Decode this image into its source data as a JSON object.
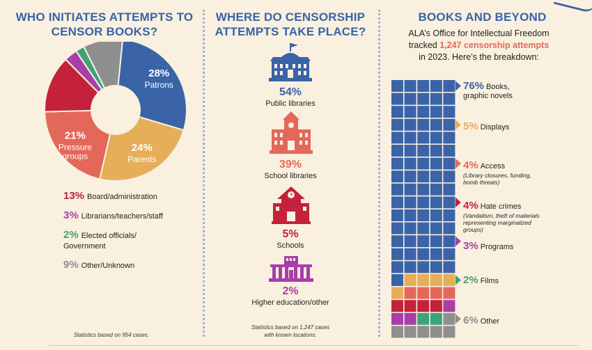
{
  "colors": {
    "blue": "#3a63a8",
    "orange": "#e6ae58",
    "salmon": "#e4685a",
    "red": "#c4213a",
    "purple": "#a83ea8",
    "green": "#3fa37a",
    "gray": "#8f8f8f",
    "background": "#f9f0df"
  },
  "initiators": {
    "heading": "WHO INITIATES ATTEMPTS TO CENSOR BOOKS?",
    "footnote": "Statistics based on 954 cases.",
    "legend": [
      {
        "pct": "13%",
        "label": "Board/administration",
        "color": "#c4213a"
      },
      {
        "pct": "3%",
        "label": "Librarians/teachers/staff",
        "color": "#a83ea8"
      },
      {
        "pct": "2%",
        "label": "Elected officials/",
        "label2": "Government",
        "color": "#3fa37a"
      },
      {
        "pct": "9%",
        "label": "Other/Unknown",
        "color": "#8f8f8f"
      }
    ]
  },
  "chart_data": [
    {
      "type": "pie",
      "title": "WHO INITIATES ATTEMPTS TO CENSOR BOOKS?",
      "donut": true,
      "slices": [
        {
          "label": "Patrons",
          "value": 28,
          "pct": "28%",
          "color": "#3a63a8",
          "label_lines": [
            "Patrons"
          ]
        },
        {
          "label": "Parents",
          "value": 24,
          "pct": "24%",
          "color": "#e6ae58",
          "label_lines": [
            "Parents"
          ]
        },
        {
          "label": "Pressure groups",
          "value": 21,
          "pct": "21%",
          "color": "#e4685a",
          "label_lines": [
            "Pressure",
            "groups"
          ]
        },
        {
          "label": "Board/administration",
          "value": 13,
          "pct": "13%",
          "color": "#c4213a"
        },
        {
          "label": "Librarians/teachers/staff",
          "value": 3,
          "pct": "3%",
          "color": "#a83ea8"
        },
        {
          "label": "Elected officials/Government",
          "value": 2,
          "pct": "2%",
          "color": "#3fa37a"
        },
        {
          "label": "Other/Unknown",
          "value": 9,
          "pct": "9%",
          "color": "#8f8f8f"
        }
      ]
    },
    {
      "type": "bar",
      "title": "WHERE DO CENSORSHIP ATTEMPTS TAKE PLACE?",
      "categories": [
        "Public libraries",
        "School libraries",
        "Schools",
        "Higher education/other"
      ],
      "values": [
        54,
        39,
        5,
        2
      ],
      "unit": "%"
    },
    {
      "type": "waffle",
      "title": "BOOKS AND BEYOND",
      "categories": [
        "Books, graphic novels",
        "Displays",
        "Access",
        "Hate crimes",
        "Programs",
        "Films",
        "Other"
      ],
      "values": [
        76,
        5,
        4,
        4,
        3,
        2,
        6
      ],
      "unit": "%"
    }
  ],
  "locations": {
    "heading": "WHERE DO CENSORSHIP ATTEMPTS TAKE PLACE?",
    "footnote_1": "Statistics based on 1,247 cases",
    "footnote_2": "with known locations.",
    "items": [
      {
        "pct": "54%",
        "label": "Public libraries",
        "icon": "public-library-icon",
        "color": "#3a63a8"
      },
      {
        "pct": "39%",
        "label": "School libraries",
        "icon": "school-library-icon",
        "color": "#e4685a"
      },
      {
        "pct": "5%",
        "label": "Schools",
        "icon": "school-icon",
        "color": "#c4213a"
      },
      {
        "pct": "2%",
        "label": "Higher education/other",
        "icon": "university-icon",
        "color": "#a83ea8"
      }
    ]
  },
  "books": {
    "heading": "BOOKS AND BEYOND",
    "intro_1": "ALA’s Office for Intellectual Freedom",
    "intro_2a": "tracked ",
    "intro_2b": "1,247 censorship attempts",
    "intro_3": "in 2023. Here’s the breakdown:",
    "items": [
      {
        "pct": "76%",
        "label": "Books,",
        "label2": "graphic novels",
        "color": "#3a63a8"
      },
      {
        "pct": "5%",
        "label": "Displays",
        "color": "#e6ae58"
      },
      {
        "pct": "4%",
        "label": "Access",
        "sub": "(Library closures, funding, bomb threats)",
        "color": "#e4685a"
      },
      {
        "pct": "4%",
        "label": "Hate crimes",
        "sub": "(Vandalism, theft of materials representing marginalized groups)",
        "color": "#c4213a"
      },
      {
        "pct": "3%",
        "label": "Programs",
        "color": "#a83ea8"
      },
      {
        "pct": "2%",
        "label": "Films",
        "color": "#3fa37a"
      },
      {
        "pct": "6%",
        "label": "Other",
        "color": "#8f8f8f"
      }
    ]
  }
}
